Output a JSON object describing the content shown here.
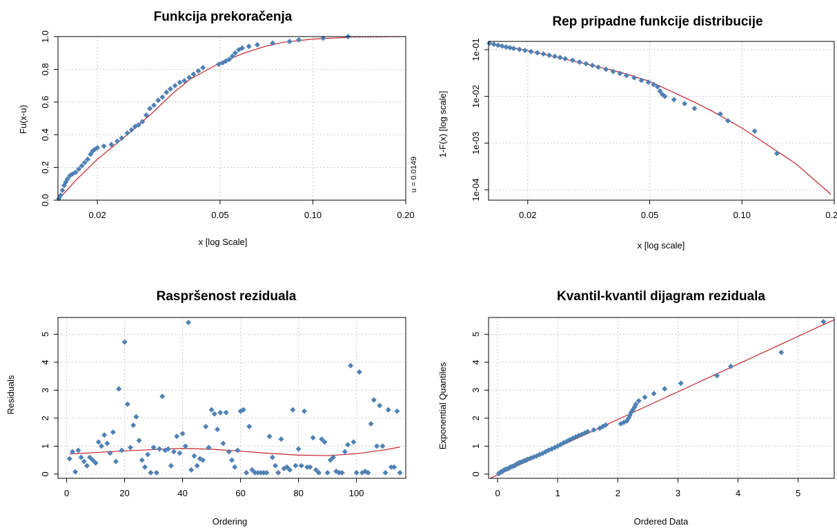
{
  "chart_data": [
    {
      "type": "scatter",
      "title": "Funkcija prekoračenja",
      "xlabel": "x [log Scale]",
      "ylabel": "Fu(x-u)",
      "side_label": "u = 0.0149",
      "x_scale": "log",
      "xlim": [
        0.0149,
        0.2
      ],
      "ylim": [
        0,
        1
      ],
      "xticks": [
        0.02,
        0.05,
        0.1,
        0.2
      ],
      "xtick_labels": [
        "0.02",
        "0.05",
        "0.10",
        "0.20"
      ],
      "yticks": [
        0.0,
        0.2,
        0.4,
        0.6,
        0.8,
        1.0
      ],
      "ytick_labels": [
        "0.0",
        "0.2",
        "0.4",
        "0.6",
        "0.8",
        "1.0"
      ],
      "grid": true,
      "series": [
        {
          "kind": "points",
          "x": [
            0.015,
            0.0152,
            0.0154,
            0.0156,
            0.0158,
            0.016,
            0.0163,
            0.0166,
            0.017,
            0.0174,
            0.0178,
            0.0182,
            0.0186,
            0.019,
            0.0193,
            0.0196,
            0.02,
            0.021,
            0.0222,
            0.0232,
            0.024,
            0.025,
            0.0258,
            0.0265,
            0.0272,
            0.028,
            0.0288,
            0.0296,
            0.0305,
            0.0315,
            0.0325,
            0.0335,
            0.0345,
            0.0357,
            0.037,
            0.0383,
            0.0397,
            0.041,
            0.0425,
            0.044,
            0.0495,
            0.051,
            0.0522,
            0.0535,
            0.0548,
            0.056,
            0.0575,
            0.059,
            0.062,
            0.066,
            0.074,
            0.084,
            0.09,
            0.108,
            0.13
          ],
          "y": [
            0.01,
            0.03,
            0.06,
            0.09,
            0.11,
            0.13,
            0.15,
            0.16,
            0.17,
            0.19,
            0.21,
            0.23,
            0.25,
            0.28,
            0.3,
            0.31,
            0.32,
            0.33,
            0.34,
            0.36,
            0.38,
            0.41,
            0.43,
            0.45,
            0.46,
            0.48,
            0.52,
            0.56,
            0.58,
            0.61,
            0.63,
            0.66,
            0.68,
            0.7,
            0.72,
            0.73,
            0.75,
            0.77,
            0.79,
            0.81,
            0.83,
            0.84,
            0.85,
            0.86,
            0.88,
            0.9,
            0.92,
            0.93,
            0.94,
            0.95,
            0.96,
            0.97,
            0.98,
            0.99,
            1.0
          ]
        },
        {
          "kind": "fit",
          "x": [
            0.0149,
            0.017,
            0.02,
            0.025,
            0.03,
            0.035,
            0.04,
            0.05,
            0.06,
            0.07,
            0.08,
            0.1,
            0.13
          ],
          "y": [
            0.0,
            0.12,
            0.25,
            0.4,
            0.53,
            0.65,
            0.74,
            0.84,
            0.9,
            0.94,
            0.965,
            0.985,
            0.995
          ]
        },
        {
          "kind": "extension",
          "x": [
            0.13,
            0.2
          ],
          "y": [
            0.995,
            0.999
          ]
        }
      ]
    },
    {
      "type": "scatter",
      "title": "Rep pripadne funkcije distribucije",
      "xlabel": "x [log scale]",
      "ylabel": "1-F(x) [log scale]",
      "x_scale": "log",
      "y_scale": "log",
      "xlim": [
        0.0149,
        0.2
      ],
      "ylim": [
        6e-05,
        0.15
      ],
      "xticks": [
        0.02,
        0.05,
        0.1,
        0.2
      ],
      "xtick_labels": [
        "0.02",
        "0.05",
        "0.10",
        "0.20"
      ],
      "yticks": [
        0.1,
        0.01,
        0.001,
        0.0001
      ],
      "ytick_labels": [
        "1e-01",
        "1e-02",
        "1e-03",
        "1e-04"
      ],
      "grid": true,
      "series": [
        {
          "kind": "points",
          "x": [
            0.015,
            0.0155,
            0.016,
            0.0165,
            0.017,
            0.0175,
            0.018,
            0.0188,
            0.0196,
            0.0205,
            0.0215,
            0.0225,
            0.0235,
            0.0245,
            0.0255,
            0.0265,
            0.028,
            0.0295,
            0.031,
            0.0325,
            0.034,
            0.036,
            0.038,
            0.04,
            0.042,
            0.0445,
            0.047,
            0.0495,
            0.0515,
            0.053,
            0.054,
            0.055,
            0.056,
            0.06,
            0.065,
            0.07,
            0.085,
            0.09,
            0.11,
            0.13
          ],
          "y": [
            0.137,
            0.13,
            0.124,
            0.119,
            0.114,
            0.11,
            0.106,
            0.101,
            0.096,
            0.091,
            0.086,
            0.081,
            0.076,
            0.072,
            0.068,
            0.064,
            0.059,
            0.054,
            0.05,
            0.046,
            0.042,
            0.038,
            0.034,
            0.031,
            0.028,
            0.025,
            0.022,
            0.02,
            0.018,
            0.016,
            0.013,
            0.011,
            0.01,
            0.0085,
            0.007,
            0.0055,
            0.0042,
            0.003,
            0.0018,
            0.0006
          ]
        },
        {
          "kind": "fit",
          "x": [
            0.0149,
            0.02,
            0.03,
            0.04,
            0.05,
            0.06,
            0.07,
            0.08,
            0.1,
            0.12,
            0.15,
            0.195
          ],
          "y": [
            0.14,
            0.095,
            0.052,
            0.033,
            0.021,
            0.012,
            0.0075,
            0.0048,
            0.0021,
            0.00095,
            0.00036,
            8e-05
          ]
        }
      ]
    },
    {
      "type": "scatter",
      "title": "Raspršenost reziduala",
      "xlabel": "Ordering",
      "ylabel": "Residuals",
      "xlim": [
        -3,
        117
      ],
      "ylim": [
        -0.15,
        5.6
      ],
      "xticks": [
        0,
        20,
        40,
        60,
        80,
        100
      ],
      "xtick_labels": [
        "0",
        "20",
        "40",
        "60",
        "80",
        "100"
      ],
      "yticks": [
        0,
        1,
        2,
        3,
        4,
        5
      ],
      "ytick_labels": [
        "0",
        "1",
        "2",
        "3",
        "4",
        "5"
      ],
      "grid": true,
      "series": [
        {
          "kind": "points",
          "x": [
            1,
            2,
            3,
            4,
            5,
            6,
            7,
            8,
            9,
            10,
            11,
            12,
            13,
            14,
            15,
            16,
            17,
            18,
            19,
            20,
            21,
            22,
            23,
            24,
            25,
            26,
            27,
            28,
            29,
            30,
            31,
            32,
            33,
            34,
            35,
            36,
            37,
            38,
            39,
            40,
            41,
            42,
            43,
            44,
            45,
            46,
            47,
            48,
            49,
            50,
            51,
            52,
            53,
            54,
            55,
            56,
            57,
            58,
            59,
            60,
            61,
            62,
            63,
            64,
            65,
            66,
            67,
            68,
            69,
            70,
            71,
            72,
            73,
            74,
            75,
            76,
            77,
            78,
            79,
            80,
            81,
            82,
            83,
            84,
            85,
            86,
            87,
            88,
            89,
            90,
            91,
            92,
            93,
            94,
            95,
            96,
            97,
            98,
            99,
            100,
            101,
            102,
            103,
            104,
            105,
            106,
            107,
            108,
            109,
            110,
            111,
            112,
            113,
            114,
            115
          ],
          "y": [
            0.55,
            0.8,
            0.08,
            0.85,
            0.6,
            0.45,
            0.3,
            0.6,
            0.5,
            0.4,
            1.15,
            1.0,
            1.4,
            1.1,
            0.75,
            1.5,
            0.45,
            3.05,
            0.85,
            4.72,
            2.5,
            0.95,
            1.75,
            2.05,
            1.2,
            0.5,
            0.25,
            0.7,
            0.05,
            0.95,
            0.05,
            0.9,
            2.78,
            0.85,
            0.9,
            0.3,
            0.8,
            1.35,
            0.75,
            1.45,
            1.0,
            5.42,
            0.15,
            0.65,
            0.3,
            0.55,
            0.5,
            1.7,
            0.95,
            2.3,
            2.15,
            1.6,
            2.2,
            1.1,
            2.2,
            0.8,
            0.5,
            0.25,
            0.85,
            2.25,
            2.3,
            0.05,
            1.7,
            0.15,
            0.05,
            0.05,
            0.05,
            0.05,
            0.05,
            1.35,
            0.6,
            0.3,
            0.05,
            1.25,
            0.2,
            0.25,
            0.15,
            2.3,
            0.3,
            0.9,
            0.3,
            2.25,
            0.25,
            0.25,
            1.3,
            0.15,
            0.05,
            1.25,
            1.15,
            0.05,
            0.5,
            0.6,
            0.1,
            0.05,
            0.05,
            0.8,
            1.05,
            3.88,
            1.15,
            0.05,
            3.65,
            0.05,
            0.1,
            0.05,
            1.8,
            2.65,
            1.0,
            2.45,
            1.0,
            0.05,
            2.3,
            0.25,
            0.25,
            2.25,
            0.05
          ],
          "note_count": 115
        },
        {
          "kind": "fit",
          "x": [
            1,
            10,
            20,
            30,
            40,
            50,
            60,
            70,
            80,
            90,
            100,
            110,
            115
          ],
          "y": [
            0.72,
            0.77,
            0.83,
            0.88,
            0.92,
            0.89,
            0.82,
            0.74,
            0.68,
            0.66,
            0.73,
            0.87,
            0.97
          ]
        }
      ]
    },
    {
      "type": "scatter",
      "title": "Kvantil-kvantil dijagram reziduala",
      "xlabel": "Ordered Data",
      "ylabel": "Exponential Quantiles",
      "xlim": [
        -0.15,
        5.6
      ],
      "ylim": [
        -0.15,
        5.6
      ],
      "xticks": [
        0,
        1,
        2,
        3,
        4,
        5
      ],
      "xtick_labels": [
        "0",
        "1",
        "2",
        "3",
        "4",
        "5"
      ],
      "yticks": [
        0,
        1,
        2,
        3,
        4,
        5
      ],
      "ytick_labels": [
        "0",
        "1",
        "2",
        "3",
        "4",
        "5"
      ],
      "grid": true,
      "series": [
        {
          "kind": "points",
          "x": [
            0.02,
            0.04,
            0.06,
            0.08,
            0.1,
            0.12,
            0.15,
            0.18,
            0.2,
            0.22,
            0.25,
            0.28,
            0.3,
            0.32,
            0.35,
            0.38,
            0.42,
            0.45,
            0.48,
            0.5,
            0.55,
            0.6,
            0.65,
            0.7,
            0.75,
            0.8,
            0.85,
            0.9,
            0.95,
            1.0,
            1.05,
            1.1,
            1.15,
            1.2,
            1.25,
            1.3,
            1.35,
            1.4,
            1.45,
            1.5,
            1.6,
            1.7,
            1.75,
            1.8,
            2.05,
            2.1,
            2.15,
            2.18,
            2.2,
            2.22,
            2.25,
            2.28,
            2.3,
            2.35,
            2.45,
            2.6,
            2.78,
            3.05,
            3.65,
            3.88,
            4.72,
            5.42
          ],
          "y": [
            0.02,
            0.05,
            0.08,
            0.1,
            0.13,
            0.16,
            0.18,
            0.2,
            0.23,
            0.26,
            0.28,
            0.3,
            0.33,
            0.36,
            0.4,
            0.42,
            0.45,
            0.48,
            0.5,
            0.53,
            0.57,
            0.61,
            0.65,
            0.7,
            0.74,
            0.8,
            0.86,
            0.9,
            0.95,
            1.0,
            1.06,
            1.12,
            1.17,
            1.23,
            1.28,
            1.33,
            1.38,
            1.42,
            1.47,
            1.52,
            1.58,
            1.64,
            1.7,
            1.76,
            1.8,
            1.85,
            1.9,
            2.0,
            2.1,
            2.2,
            2.3,
            2.4,
            2.5,
            2.62,
            2.75,
            2.88,
            3.05,
            3.25,
            3.52,
            3.85,
            4.35,
            5.45
          ]
        },
        {
          "kind": "fit",
          "x": [
            -0.15,
            5.6
          ],
          "y": [
            -0.18,
            5.52
          ]
        }
      ]
    }
  ]
}
